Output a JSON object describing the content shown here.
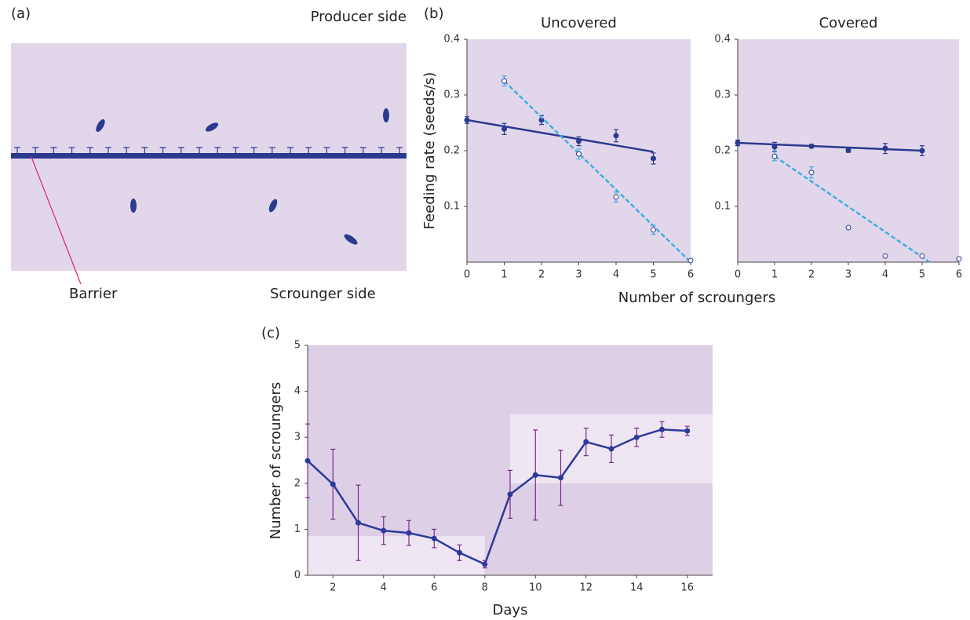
{
  "panel_a": {
    "label": "(a)",
    "producer_side": "Producer side",
    "barrier": "Barrier",
    "scrounger_side": "Scrounger side"
  },
  "chart_data": [
    {
      "type": "scatter",
      "panel_label": "(b)",
      "title": "Uncovered",
      "y_label": "Feeding rate (seeds/s)",
      "x_label": "Number of scroungers",
      "xlim": [
        0,
        6
      ],
      "ylim": [
        0,
        0.4
      ],
      "xticks": [
        0,
        1,
        2,
        3,
        4,
        5,
        6
      ],
      "yticks": [
        0.1,
        0.2,
        0.3,
        0.4
      ],
      "series": [
        {
          "color": "#2b3a8f",
          "marker": "filled",
          "x": [
            0,
            1,
            2,
            3,
            4,
            5
          ],
          "values": [
            0.255,
            0.239,
            0.255,
            0.217,
            0.227,
            0.186
          ],
          "errors": [
            0.006,
            0.01,
            0.008,
            0.008,
            0.011,
            0.01
          ],
          "fit": {
            "x": [
              0,
              5
            ],
            "values": [
              0.255,
              0.198
            ],
            "dash": false
          }
        },
        {
          "color": "#3fb0e0",
          "marker": "open",
          "x": [
            1,
            3,
            4,
            5,
            6
          ],
          "values": [
            0.325,
            0.194,
            0.117,
            0.058,
            0.003
          ],
          "errors": [
            0.009,
            0.009,
            0.009,
            0.008,
            0.002
          ],
          "fit": {
            "x": [
              1,
              6
            ],
            "values": [
              0.325,
              0.0
            ],
            "dash": true
          }
        }
      ]
    },
    {
      "type": "scatter",
      "title": "Covered",
      "xlim": [
        0,
        6
      ],
      "ylim": [
        0,
        0.4
      ],
      "xticks": [
        0,
        1,
        2,
        3,
        4,
        5,
        6
      ],
      "yticks": [
        0.1,
        0.2,
        0.3,
        0.4
      ],
      "series": [
        {
          "color": "#2b3a8f",
          "marker": "filled",
          "x": [
            0,
            1,
            2,
            3,
            4,
            5
          ],
          "values": [
            0.214,
            0.207,
            0.208,
            0.201,
            0.204,
            0.2
          ],
          "errors": [
            0.005,
            0.008,
            0.003,
            0.004,
            0.009,
            0.009
          ],
          "fit": {
            "x": [
              0,
              5
            ],
            "values": [
              0.214,
              0.2
            ],
            "dash": false
          }
        },
        {
          "color": "#3fb0e0",
          "marker": "open",
          "x": [
            1,
            2,
            3,
            4,
            5,
            6
          ],
          "values": [
            0.19,
            0.161,
            0.062,
            0.011,
            0.011,
            0.006
          ],
          "errors": [
            0.008,
            0.01,
            0.002,
            0.002,
            0.002,
            0.002
          ],
          "fit": {
            "x": [
              1,
              5.2
            ],
            "values": [
              0.19,
              0.0
            ],
            "dash": true
          }
        }
      ]
    },
    {
      "type": "line",
      "panel_label": "(c)",
      "y_label": "Number of scroungers",
      "x_label": "Days",
      "xlim": [
        1,
        17
      ],
      "ylim": [
        0,
        5
      ],
      "xticks": [
        2,
        4,
        6,
        8,
        10,
        12,
        14,
        16
      ],
      "yticks": [
        0,
        1,
        2,
        3,
        4,
        5
      ],
      "bands": [
        {
          "x": [
            1,
            8
          ],
          "y": [
            0,
            0.85
          ]
        },
        {
          "x": [
            9,
            17
          ],
          "y": [
            2,
            3.5
          ]
        }
      ],
      "series": [
        {
          "color": "#2e3a9a",
          "error_color": "#7a2a8a",
          "marker": "filled",
          "x": [
            1,
            2,
            3,
            4,
            5,
            6,
            7,
            8,
            9,
            10,
            11,
            12,
            13,
            14,
            15,
            16
          ],
          "values": [
            2.49,
            1.98,
            1.14,
            0.97,
            0.92,
            0.8,
            0.49,
            0.24,
            1.76,
            2.18,
            2.12,
            2.9,
            2.75,
            3.0,
            3.17,
            3.14
          ],
          "errors": [
            0.8,
            0.76,
            0.82,
            0.3,
            0.27,
            0.2,
            0.17,
            0.08,
            0.52,
            0.98,
            0.6,
            0.3,
            0.3,
            0.2,
            0.17,
            0.1
          ]
        }
      ]
    }
  ]
}
